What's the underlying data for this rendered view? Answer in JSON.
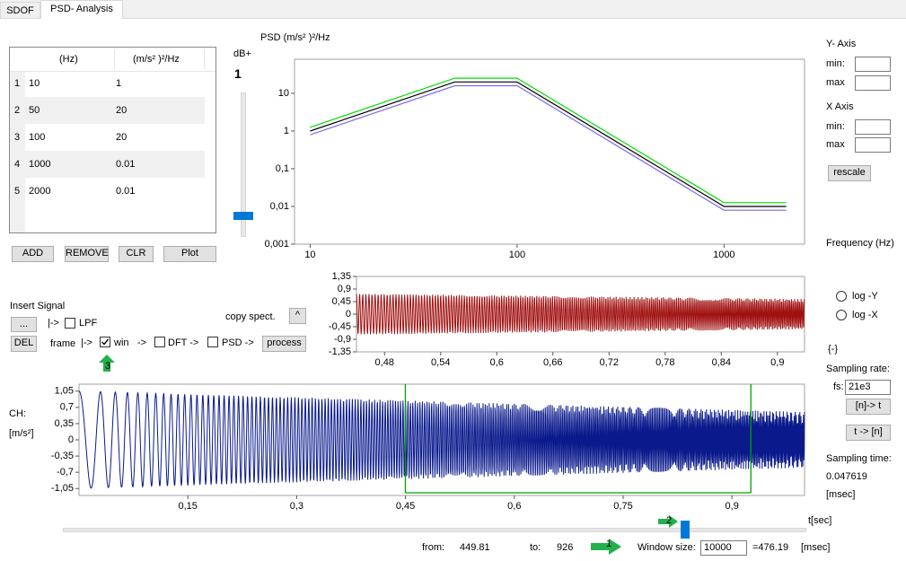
{
  "tabs": [
    "SDOF",
    "PSD- Analysis"
  ],
  "table": {
    "headers": [
      "(Hz)",
      "(m/s² )²/Hz"
    ],
    "row_numbers": [
      1,
      2,
      3,
      4,
      5
    ],
    "rows": [
      [
        10,
        1
      ],
      [
        50,
        20
      ],
      [
        100,
        20
      ],
      [
        1000,
        0.01
      ],
      [
        2000,
        0.01
      ]
    ]
  },
  "table_buttons": [
    "ADD",
    "REMOVE",
    "CLR",
    "Plot"
  ],
  "gain": {
    "label": "dB+",
    "value": 1
  },
  "psd_chart": {
    "type": "line",
    "title": "PSD (m/s² )²/Hz",
    "log_x": true,
    "log_y": true,
    "xlim": [
      8.4,
      2450
    ],
    "ylim": [
      0.001,
      80
    ],
    "xticks": [
      10,
      100,
      1000
    ],
    "yticks": [
      10,
      1,
      {
        "value": 0.1,
        "label": "0,1"
      },
      {
        "value": 0.01,
        "label": "0,01"
      },
      {
        "value": 0.001,
        "label": "0,001"
      }
    ],
    "colors": {
      "upper": "#00dd00",
      "nominal": "#000000",
      "lower": "#7b68ee"
    }
  },
  "axis_panel": {
    "y_axis": "Y- Axis",
    "x_axis": "X Axis",
    "min": "min:",
    "max": "max",
    "rescale": "rescale",
    "frequency": "Frequency (Hz)",
    "log_y": "log -Y",
    "log_x": "log -X"
  },
  "sampling": {
    "unit_hint": "{-}",
    "rate_label": "Sampling rate:",
    "fs_label": "fs:",
    "fs": "21e3",
    "n_to_t": "[n]-> t",
    "t_to_n": "t -> [n]",
    "time_label": "Sampling time:",
    "time": 0.047619,
    "time_unit": "[msec]"
  },
  "signal_controls": {
    "insert": "Insert Signal",
    "browse": "...",
    "arrow1": "|->",
    "lpf": "LPF",
    "lpf_checked": false,
    "del": "DEL",
    "frame": "frame",
    "arrow2": "|->",
    "win": "win",
    "win_checked": true,
    "arrow3": "->",
    "dft": "DFT ->",
    "dft_checked": false,
    "psd": "PSD ->",
    "psd_checked": false,
    "process": "process",
    "copy": "copy spect.",
    "up": "^"
  },
  "window_chart": {
    "type": "line",
    "color": "#a01010",
    "xlim": [
      0.45,
      0.929
    ],
    "ylim": [
      -1.35,
      1.35
    ],
    "xticks": [
      {
        "value": 0.48,
        "label": "0,48"
      },
      {
        "value": 0.54,
        "label": "0,54"
      },
      {
        "value": 0.6,
        "label": "0,6"
      },
      {
        "value": 0.66,
        "label": "0,66"
      },
      {
        "value": 0.72,
        "label": "0,72"
      },
      {
        "value": 0.78,
        "label": "0,78"
      },
      {
        "value": 0.84,
        "label": "0,84"
      },
      {
        "value": 0.9,
        "label": "0,9"
      }
    ],
    "yticks": [
      {
        "value": 1.35,
        "label": "1,35"
      },
      {
        "value": 0.9,
        "label": "0,9"
      },
      {
        "value": 0.45,
        "label": "0,45"
      },
      0,
      {
        "value": -0.45,
        "label": "-0,45"
      },
      {
        "value": -0.9,
        "label": "-0,9"
      },
      {
        "value": -1.35,
        "label": "-1,35"
      }
    ]
  },
  "signal_chart": {
    "type": "line",
    "channel": "CH:",
    "unit": "[m/s²]",
    "x_label": "t[sec]",
    "color": "#0a1a8c",
    "window_color": "#00a000",
    "xlim": [
      0,
      1
    ],
    "ylim": [
      -1.2,
      1.2
    ],
    "xticks": [
      {
        "value": 0.15,
        "label": "0,15"
      },
      {
        "value": 0.3,
        "label": "0,3"
      },
      {
        "value": 0.45,
        "label": "0,45"
      },
      {
        "value": 0.6,
        "label": "0,6"
      },
      {
        "value": 0.75,
        "label": "0,75"
      },
      {
        "value": 0.9,
        "label": "0,9"
      }
    ],
    "yticks": [
      {
        "value": 1.05,
        "label": "1,05"
      },
      {
        "value": 0.7,
        "label": "0,7"
      },
      {
        "value": 0.35,
        "label": "0,35"
      },
      0,
      {
        "value": -0.35,
        "label": "-0,35"
      },
      {
        "value": -0.7,
        "label": "-0,7"
      },
      {
        "value": -1.05,
        "label": "-1,05"
      }
    ]
  },
  "window": {
    "from_label": "from:",
    "from": 449.81,
    "to_label": "to:",
    "to": 926,
    "size_label": "Window size:",
    "size": 10000,
    "duration": "=476.19",
    "duration_unit": "[msec]"
  },
  "markers": [
    1,
    2,
    3
  ]
}
